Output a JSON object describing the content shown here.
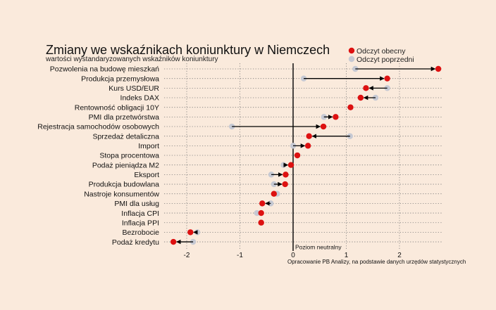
{
  "chart_data": {
    "type": "dumbbell",
    "title": "Zmiany we wskaźnikach koniunktury w Niemczech",
    "subtitle": "wartości wystandaryzowanych wskaźników koniunktury",
    "xlim": [
      -2.4,
      2.8
    ],
    "xticks": [
      -2,
      -1,
      0,
      1,
      2
    ],
    "xtick_labels": [
      "-2",
      "-1",
      "0",
      "1",
      "2"
    ],
    "neutral_label": "Poziom neutralny",
    "source_note": "Opracowanie PB Analizy, na podstawie danych urzędów statystycznych",
    "grid": true,
    "legend": {
      "placement": "top-right",
      "current": "Odczyt obecny",
      "previous": "Odczyt poprzedni"
    },
    "colors": {
      "current": "#dd1111",
      "previous": "#c6c9d3",
      "arrow": "#000000",
      "background": "#faeadc"
    },
    "categories": [
      "Pozwolenia na budowę mieszkań",
      "Produkcja przemysłowa",
      "Kurs USD/EUR",
      "Indeks DAX",
      "Rentowność obligacji 10Y",
      "PMI dla przetwórstwa",
      "Rejestracja samochodów osobowych",
      "Sprzedaż detaliczna",
      "Import",
      "Stopa procentowa",
      "Podaż pieniądza M2",
      "Eksport",
      "Produkcja budowlana",
      "Nastroje konsumentów",
      "PMI dla usług",
      "Inflacja CPI",
      "Inflacja PPI",
      "Bezrobocie",
      "Podaż kredytu"
    ],
    "series": [
      {
        "name": "Odczyt obecny",
        "values": [
          2.73,
          1.77,
          1.37,
          1.27,
          1.08,
          0.8,
          0.57,
          0.3,
          0.28,
          0.08,
          -0.04,
          -0.14,
          -0.15,
          -0.36,
          -0.58,
          -0.6,
          -0.6,
          -1.93,
          -2.25
        ]
      },
      {
        "name": "Odczyt poprzedni",
        "values": [
          1.17,
          0.2,
          1.77,
          1.55,
          1.08,
          0.58,
          -1.15,
          1.07,
          0.0,
          0.08,
          -0.18,
          -0.41,
          -0.36,
          -0.3,
          -0.42,
          -0.68,
          -0.6,
          -1.8,
          -1.88
        ]
      }
    ]
  }
}
